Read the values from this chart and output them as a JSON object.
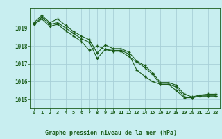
{
  "title": "Graphe pression niveau de la mer (hPa)",
  "background_color": "#c8eef0",
  "grid_color": "#a8d0d8",
  "line_color": "#1a5c1a",
  "marker_color": "#1a5c1a",
  "xlim": [
    -0.5,
    23.5
  ],
  "ylim": [
    1014.5,
    1020.1
  ],
  "yticks": [
    1015,
    1016,
    1017,
    1018,
    1019
  ],
  "xticks": [
    0,
    1,
    2,
    3,
    4,
    5,
    6,
    7,
    8,
    9,
    10,
    11,
    12,
    13,
    14,
    15,
    16,
    17,
    18,
    19,
    20,
    21,
    22,
    23
  ],
  "series1": [
    1019.2,
    1019.6,
    1019.2,
    1019.3,
    1019.0,
    1018.7,
    1018.4,
    1018.2,
    1017.3,
    1017.8,
    1017.7,
    1017.7,
    1017.4,
    1017.1,
    1016.8,
    1016.4,
    1015.85,
    1015.85,
    1015.7,
    1015.15,
    1015.1,
    1015.2,
    1015.2,
    1015.2
  ],
  "series2": [
    1019.2,
    1019.5,
    1019.1,
    1019.2,
    1018.85,
    1018.55,
    1018.25,
    1017.75,
    1018.0,
    1017.8,
    1017.75,
    1017.75,
    1017.55,
    1016.65,
    1016.3,
    1016.0,
    1015.85,
    1015.85,
    1015.5,
    1015.1,
    1015.1,
    1015.2,
    1015.2,
    1015.2
  ],
  "series3": [
    1019.3,
    1019.7,
    1019.3,
    1019.5,
    1019.15,
    1018.8,
    1018.55,
    1018.35,
    1017.6,
    1018.05,
    1017.85,
    1017.85,
    1017.65,
    1017.15,
    1016.9,
    1016.5,
    1015.95,
    1015.95,
    1015.8,
    1015.3,
    1015.15,
    1015.25,
    1015.3,
    1015.3
  ]
}
